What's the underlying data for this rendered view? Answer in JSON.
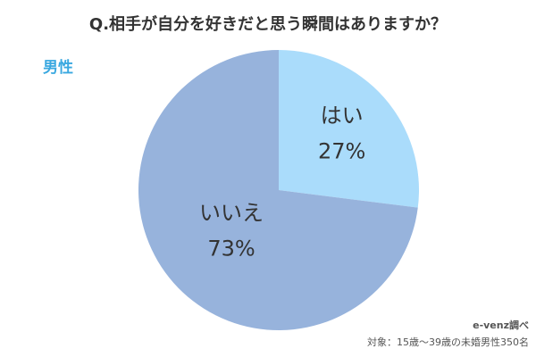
{
  "chart_data": {
    "type": "pie",
    "title": "Q.相手が自分を好きだと思う瞬間はありますか？",
    "subtitle": "男性",
    "categories": [
      "はい",
      "いいえ"
    ],
    "values": [
      27,
      73
    ],
    "value_labels": [
      "27%",
      "73%"
    ],
    "colors": [
      "#aadcfb",
      "#97b3dc"
    ],
    "source": "e-venz調べ",
    "note": "対象：15歳〜39歳の未婚男性350名"
  }
}
